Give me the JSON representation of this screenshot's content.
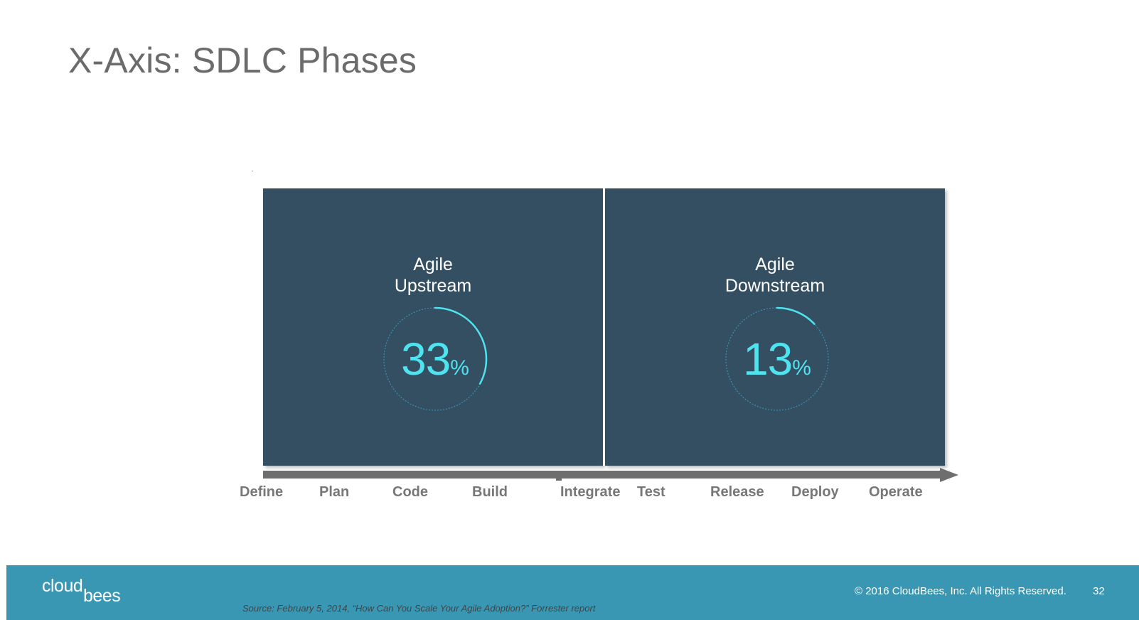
{
  "slide": {
    "title": "X-Axis: SDLC Phases"
  },
  "panels": [
    {
      "heading_line1": "Agile",
      "heading_line2": "Upstream",
      "value": "33",
      "unit": "%",
      "percent": 33
    },
    {
      "heading_line1": "Agile",
      "heading_line2": "Downstream",
      "value": "13",
      "unit": "%",
      "percent": 13
    }
  ],
  "axis": {
    "phases": [
      "Define",
      "Plan",
      "Code",
      "Build",
      "Integrate",
      "Test",
      "Release",
      "Deploy",
      "Operate"
    ]
  },
  "footer": {
    "logo_part1": "cloud",
    "logo_part2": "bees",
    "source": "Source: February 5, 2014, “How Can You Scale Your Agile Adoption?” Forrester report",
    "copyright": "© 2016 CloudBees, Inc. All Rights Reserved.",
    "page_number": "32"
  },
  "colors": {
    "panel": "#344f61",
    "accent": "#4fe3f0",
    "footer": "#3a97b3",
    "axis": "#6e6e6e"
  }
}
